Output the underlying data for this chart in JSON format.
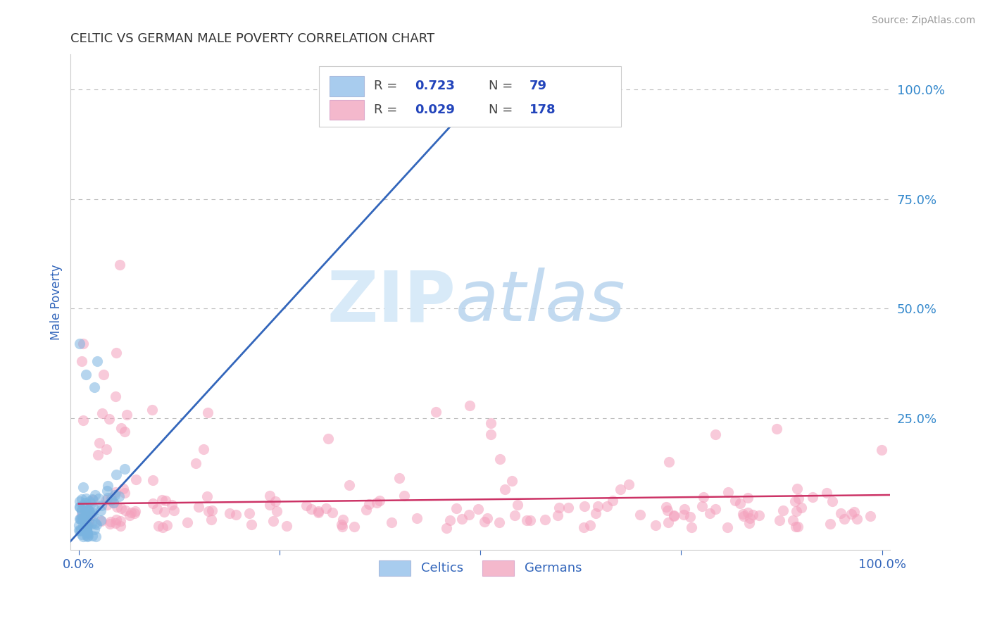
{
  "title": "CELTIC VS GERMAN MALE POVERTY CORRELATION CHART",
  "source_text": "Source: ZipAtlas.com",
  "ylabel": "Male Poverty",
  "y_tick_positions": [
    1.0,
    0.75,
    0.5,
    0.25
  ],
  "y_tick_labels_right": [
    "100.0%",
    "75.0%",
    "50.0%",
    "25.0%"
  ],
  "celtics_R": 0.723,
  "celtics_N": 79,
  "celtics_scatter_color": "#7ab4e0",
  "celtics_line_color": "#3366bb",
  "celtics_legend_color": "#a8ccee",
  "germans_R": 0.029,
  "germans_N": 178,
  "germans_scatter_color": "#f4a0bc",
  "germans_line_color": "#cc3366",
  "germans_legend_color": "#f4b8cc",
  "background_color": "#ffffff",
  "grid_color": "#bbbbbb",
  "title_color": "#333333",
  "axis_label_color": "#3366bb",
  "right_tick_color": "#3388cc",
  "legend_text_color": "#2244bb",
  "watermark_zip_color": "#d8eaf8",
  "watermark_atlas_color": "#b8d4ee"
}
